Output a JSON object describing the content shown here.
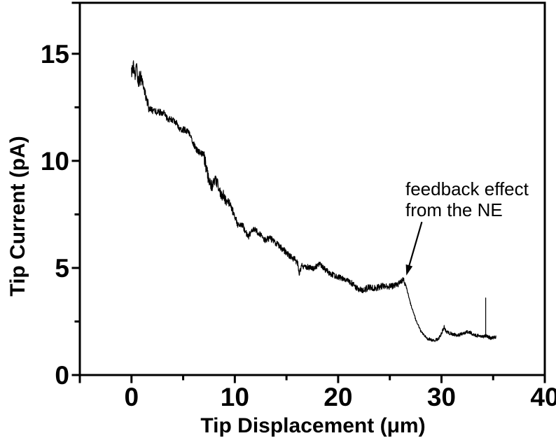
{
  "figure": {
    "background": "#ffffff",
    "foreground": "#000000"
  },
  "chart_data": {
    "type": "line",
    "title": "",
    "xlabel": "Tip Displacement (μm)",
    "ylabel": "Tip Current (pA)",
    "xlim": [
      -5,
      40
    ],
    "ylim": [
      0,
      17.38
    ],
    "x_major_ticks": [
      0,
      10,
      20,
      30,
      40
    ],
    "x_minor_ticks": [
      5,
      15,
      25,
      35
    ],
    "y_major_ticks": [
      0,
      5,
      10,
      15
    ],
    "y_minor_ticks": [
      2.5,
      7.5,
      12.5
    ],
    "axis_end_ticks": {
      "x": [
        -5
      ],
      "y": [
        17.38
      ]
    },
    "grid": false,
    "legend": null,
    "series": [
      {
        "name": "tip-current-approach-curve",
        "color": "#000000",
        "stroke_width": 1.2,
        "samples": 1500,
        "seed": 12345,
        "trend_points": [
          [
            0,
            14.0
          ],
          [
            0.15,
            14.45
          ],
          [
            0.3,
            13.85
          ],
          [
            0.5,
            14.35
          ],
          [
            0.65,
            13.75
          ],
          [
            0.9,
            13.95
          ],
          [
            1.2,
            13.4
          ],
          [
            1.45,
            12.9
          ],
          [
            1.7,
            12.45
          ],
          [
            2.2,
            12.3
          ],
          [
            3.1,
            12.25
          ],
          [
            3.4,
            12.0
          ],
          [
            4.2,
            11.85
          ],
          [
            4.7,
            11.5
          ],
          [
            5.5,
            11.4
          ],
          [
            5.9,
            10.9
          ],
          [
            6.3,
            10.5
          ],
          [
            7.0,
            10.25
          ],
          [
            7.4,
            9.3
          ],
          [
            7.8,
            8.8
          ],
          [
            8.2,
            9.1
          ],
          [
            8.6,
            8.55
          ],
          [
            9.0,
            8.25
          ],
          [
            9.6,
            7.95
          ],
          [
            9.9,
            7.5
          ],
          [
            10.3,
            7.0
          ],
          [
            10.8,
            6.95
          ],
          [
            11.3,
            6.45
          ],
          [
            11.8,
            6.8
          ],
          [
            12.3,
            6.65
          ],
          [
            12.9,
            6.3
          ],
          [
            13.4,
            6.4
          ],
          [
            14.0,
            6.15
          ],
          [
            14.6,
            5.9
          ],
          [
            15.2,
            5.6
          ],
          [
            15.8,
            5.4
          ],
          [
            16.1,
            5.2
          ],
          [
            16.25,
            4.7
          ],
          [
            16.45,
            5.1
          ],
          [
            17.0,
            5.05
          ],
          [
            17.6,
            4.95
          ],
          [
            18.2,
            5.2
          ],
          [
            18.7,
            4.95
          ],
          [
            19.2,
            4.75
          ],
          [
            19.8,
            4.6
          ],
          [
            20.5,
            4.5
          ],
          [
            21.2,
            4.35
          ],
          [
            21.9,
            4.0
          ],
          [
            22.4,
            3.95
          ],
          [
            23.0,
            4.1
          ],
          [
            23.6,
            4.05
          ],
          [
            24.2,
            4.15
          ],
          [
            24.9,
            4.1
          ],
          [
            25.5,
            4.2
          ],
          [
            26.0,
            4.3
          ],
          [
            26.3,
            4.45
          ],
          [
            26.55,
            4.2
          ],
          [
            27.0,
            3.35
          ],
          [
            27.5,
            2.6
          ],
          [
            28.0,
            2.05
          ],
          [
            28.6,
            1.72
          ],
          [
            29.2,
            1.6
          ],
          [
            29.7,
            1.68
          ],
          [
            30.0,
            1.95
          ],
          [
            30.25,
            2.25
          ],
          [
            30.5,
            2.0
          ],
          [
            31.0,
            1.92
          ],
          [
            31.6,
            1.85
          ],
          [
            32.2,
            1.98
          ],
          [
            32.7,
            2.0
          ],
          [
            33.2,
            1.88
          ],
          [
            33.8,
            1.8
          ],
          [
            34.3,
            1.82
          ],
          [
            34.8,
            1.72
          ],
          [
            35.27,
            1.78
          ]
        ],
        "noise_segments": [
          [
            0,
            0.9,
            0.38
          ],
          [
            0.9,
            1.7,
            0.22
          ],
          [
            1.7,
            7.0,
            0.15
          ],
          [
            7.0,
            9.2,
            0.3
          ],
          [
            9.2,
            10.2,
            0.18
          ],
          [
            10.2,
            16.0,
            0.15
          ],
          [
            16.0,
            21.0,
            0.13
          ],
          [
            21.0,
            26.45,
            0.15
          ],
          [
            26.45,
            28.6,
            0.045
          ],
          [
            28.6,
            35.3,
            0.08
          ]
        ],
        "spike": {
          "x": 34.28,
          "y_top": 3.6
        }
      }
    ],
    "annotation": {
      "line1": "feedback effect",
      "line2": "from the NE",
      "arrow_from": [
        28.1,
        7.15
      ],
      "arrow_to": [
        26.6,
        4.65
      ]
    }
  }
}
